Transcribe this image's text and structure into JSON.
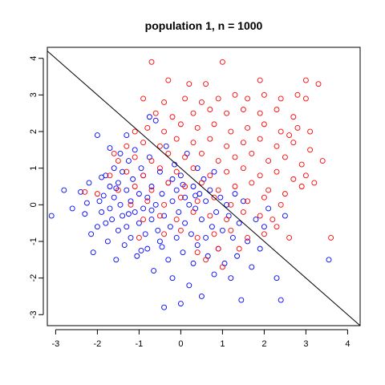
{
  "chart_data": {
    "type": "scatter",
    "title": "population 1, n = 1000",
    "xlabel": "",
    "ylabel": "",
    "xlim": [
      -3.2,
      4.3
    ],
    "ylim": [
      -3.3,
      4.3
    ],
    "x_ticks": [
      -3,
      -2,
      -1,
      0,
      1,
      2,
      3,
      4
    ],
    "y_ticks": [
      -3,
      -2,
      -1,
      0,
      1,
      2,
      3,
      4
    ],
    "x_tick_labels": [
      "-3",
      "-2",
      "-1",
      "0",
      "1",
      "2",
      "3",
      "4"
    ],
    "y_tick_labels": [
      "-3",
      "-2",
      "-1",
      "0",
      "1",
      "2",
      "3",
      "4"
    ],
    "grid": false,
    "legend": "none",
    "line": {
      "intercept": 1,
      "slope": -1,
      "color": "#000000"
    },
    "series": [
      {
        "color": "#0000ff",
        "marker": "open-circle",
        "points": [
          [
            -3.1,
            -0.3
          ],
          [
            -2.8,
            0.4
          ],
          [
            -2.6,
            -0.1
          ],
          [
            -2.4,
            0.35
          ],
          [
            -2.2,
            0.6
          ],
          [
            -2.15,
            -0.8
          ],
          [
            -2.1,
            -1.3
          ],
          [
            -2.0,
            -0.6
          ],
          [
            -1.95,
            0.1
          ],
          [
            -1.9,
            -0.2
          ],
          [
            -1.85,
            0.25
          ],
          [
            -1.8,
            -0.5
          ],
          [
            -1.8,
            0.8
          ],
          [
            -1.75,
            -1.0
          ],
          [
            -1.7,
            0.5
          ],
          [
            -1.7,
            -0.1
          ],
          [
            -1.65,
            -0.4
          ],
          [
            -1.6,
            1.0
          ],
          [
            -1.6,
            0.2
          ],
          [
            -1.55,
            -1.5
          ],
          [
            -1.5,
            -0.7
          ],
          [
            -1.5,
            0.6
          ],
          [
            -1.45,
            1.4
          ],
          [
            -1.45,
            0.0
          ],
          [
            -1.4,
            -0.3
          ],
          [
            -1.4,
            0.9
          ],
          [
            -1.35,
            -1.1
          ],
          [
            -1.3,
            0.4
          ],
          [
            -1.3,
            -0.6
          ],
          [
            -1.25,
            1.2
          ],
          [
            -1.2,
            0.1
          ],
          [
            -1.2,
            -0.9
          ],
          [
            -1.15,
            0.7
          ],
          [
            -1.1,
            -0.2
          ],
          [
            -1.1,
            1.5
          ],
          [
            -1.05,
            -1.4
          ],
          [
            -1.0,
            0.3
          ],
          [
            -1.0,
            -0.5
          ],
          [
            -0.95,
            1.0
          ],
          [
            -0.9,
            -0.1
          ],
          [
            -0.9,
            0.8
          ],
          [
            -0.85,
            -0.8
          ],
          [
            -0.8,
            0.2
          ],
          [
            -0.8,
            -1.2
          ],
          [
            -0.75,
            1.3
          ],
          [
            -0.7,
            -0.4
          ],
          [
            -0.7,
            0.5
          ],
          [
            -0.65,
            -1.8
          ],
          [
            -0.6,
            0.0
          ],
          [
            -0.6,
            2.3
          ],
          [
            -0.55,
            -0.7
          ],
          [
            -0.5,
            0.9
          ],
          [
            -0.5,
            -1.0
          ],
          [
            -0.45,
            0.3
          ],
          [
            -0.4,
            -2.8
          ],
          [
            -0.4,
            -0.3
          ],
          [
            -0.35,
            1.6
          ],
          [
            -0.3,
            -1.5
          ],
          [
            -0.3,
            0.6
          ],
          [
            -0.25,
            -0.6
          ],
          [
            -0.2,
            0.1
          ],
          [
            -0.2,
            -2.0
          ],
          [
            -0.15,
            1.1
          ],
          [
            -0.1,
            -0.9
          ],
          [
            -0.1,
            0.4
          ],
          [
            -0.05,
            -0.2
          ],
          [
            0.0,
            -2.7
          ],
          [
            0.0,
            0.8
          ],
          [
            0.05,
            -1.3
          ],
          [
            0.1,
            0.2
          ],
          [
            0.1,
            -0.5
          ],
          [
            0.15,
            1.4
          ],
          [
            0.2,
            -2.2
          ],
          [
            0.2,
            0.0
          ],
          [
            0.25,
            -0.8
          ],
          [
            0.3,
            0.5
          ],
          [
            0.3,
            -1.6
          ],
          [
            0.35,
            -0.1
          ],
          [
            0.4,
            1.0
          ],
          [
            0.4,
            -1.1
          ],
          [
            0.45,
            0.3
          ],
          [
            0.5,
            -0.4
          ],
          [
            0.5,
            -2.5
          ],
          [
            0.55,
            0.7
          ],
          [
            0.6,
            -0.9
          ],
          [
            0.6,
            0.1
          ],
          [
            0.65,
            -1.4
          ],
          [
            0.7,
            0.4
          ],
          [
            0.75,
            -0.6
          ],
          [
            0.8,
            -1.9
          ],
          [
            0.8,
            0.9
          ],
          [
            0.85,
            -0.2
          ],
          [
            0.9,
            -1.2
          ],
          [
            0.95,
            0.2
          ],
          [
            1.0,
            -0.7
          ],
          [
            1.05,
            -1.6
          ],
          [
            1.1,
            0.0
          ],
          [
            1.15,
            -0.3
          ],
          [
            1.2,
            -2.0
          ],
          [
            1.25,
            -0.9
          ],
          [
            1.3,
            0.3
          ],
          [
            1.35,
            -1.4
          ],
          [
            1.4,
            -0.5
          ],
          [
            1.45,
            -2.6
          ],
          [
            1.5,
            0.1
          ],
          [
            1.6,
            -1.0
          ],
          [
            1.7,
            -1.7
          ],
          [
            1.8,
            -0.4
          ],
          [
            1.9,
            -1.2
          ],
          [
            2.0,
            -0.6
          ],
          [
            2.1,
            -0.1
          ],
          [
            2.3,
            -2.0
          ],
          [
            2.4,
            -2.6
          ],
          [
            2.5,
            -0.3
          ],
          [
            3.55,
            -1.5
          ],
          [
            -2.0,
            1.9
          ],
          [
            -1.3,
            1.9
          ],
          [
            -0.75,
            2.4
          ],
          [
            -1.7,
            1.55
          ],
          [
            -2.3,
            -0.25
          ],
          [
            -2.25,
            0.05
          ],
          [
            -1.9,
            0.75
          ],
          [
            -1.55,
            0.45
          ],
          [
            -1.25,
            -0.25
          ],
          [
            -0.95,
            -1.25
          ],
          [
            -0.7,
            -0.15
          ],
          [
            -0.45,
            -1.15
          ],
          [
            -0.2,
            0.7
          ],
          [
            0.05,
            0.55
          ],
          [
            0.35,
            0.25
          ]
        ]
      },
      {
        "color": "#ff0000",
        "marker": "open-circle",
        "points": [
          [
            -0.7,
            3.9
          ],
          [
            1.0,
            3.9
          ],
          [
            -0.3,
            3.4
          ],
          [
            0.2,
            3.3
          ],
          [
            0.6,
            3.3
          ],
          [
            1.9,
            3.4
          ],
          [
            3.0,
            3.4
          ],
          [
            3.3,
            3.3
          ],
          [
            -0.9,
            2.9
          ],
          [
            -0.4,
            2.8
          ],
          [
            0.1,
            2.9
          ],
          [
            0.5,
            2.8
          ],
          [
            0.9,
            2.9
          ],
          [
            1.3,
            3.0
          ],
          [
            1.6,
            2.9
          ],
          [
            2.0,
            3.0
          ],
          [
            2.4,
            2.9
          ],
          [
            2.8,
            3.0
          ],
          [
            3.0,
            2.9
          ],
          [
            -0.6,
            2.5
          ],
          [
            -0.2,
            2.4
          ],
          [
            0.3,
            2.5
          ],
          [
            0.7,
            2.6
          ],
          [
            1.1,
            2.5
          ],
          [
            1.5,
            2.6
          ],
          [
            1.9,
            2.5
          ],
          [
            2.3,
            2.6
          ],
          [
            2.7,
            2.4
          ],
          [
            -1.1,
            2.0
          ],
          [
            -0.8,
            2.1
          ],
          [
            -0.4,
            2.0
          ],
          [
            0.0,
            2.2
          ],
          [
            0.4,
            2.1
          ],
          [
            0.8,
            2.2
          ],
          [
            1.2,
            2.0
          ],
          [
            1.6,
            2.1
          ],
          [
            2.0,
            2.2
          ],
          [
            2.4,
            2.0
          ],
          [
            2.8,
            2.1
          ],
          [
            3.1,
            2.0
          ],
          [
            -1.3,
            1.6
          ],
          [
            -0.9,
            1.7
          ],
          [
            -0.5,
            1.6
          ],
          [
            -0.1,
            1.8
          ],
          [
            0.3,
            1.7
          ],
          [
            0.7,
            1.8
          ],
          [
            1.1,
            1.6
          ],
          [
            1.5,
            1.7
          ],
          [
            1.9,
            1.8
          ],
          [
            2.3,
            1.6
          ],
          [
            2.7,
            1.7
          ],
          [
            3.1,
            1.5
          ],
          [
            -1.5,
            1.2
          ],
          [
            -1.1,
            1.3
          ],
          [
            -0.7,
            1.2
          ],
          [
            -0.3,
            1.4
          ],
          [
            0.1,
            1.3
          ],
          [
            0.5,
            1.4
          ],
          [
            0.9,
            1.2
          ],
          [
            1.3,
            1.3
          ],
          [
            1.7,
            1.4
          ],
          [
            2.1,
            1.2
          ],
          [
            2.5,
            1.3
          ],
          [
            2.9,
            1.1
          ],
          [
            3.4,
            1.2
          ],
          [
            -1.7,
            0.8
          ],
          [
            -1.3,
            0.9
          ],
          [
            -0.9,
            0.8
          ],
          [
            -0.5,
            1.0
          ],
          [
            -0.1,
            0.9
          ],
          [
            0.3,
            1.0
          ],
          [
            0.7,
            0.8
          ],
          [
            1.1,
            0.9
          ],
          [
            1.5,
            1.0
          ],
          [
            1.9,
            0.8
          ],
          [
            2.3,
            0.9
          ],
          [
            2.7,
            0.7
          ],
          [
            3.0,
            0.8
          ],
          [
            -1.5,
            0.4
          ],
          [
            -1.1,
            0.5
          ],
          [
            -0.7,
            0.4
          ],
          [
            -0.3,
            0.6
          ],
          [
            0.1,
            0.5
          ],
          [
            0.5,
            0.6
          ],
          [
            0.9,
            0.4
          ],
          [
            1.3,
            0.5
          ],
          [
            1.7,
            0.6
          ],
          [
            2.1,
            0.4
          ],
          [
            2.5,
            0.3
          ],
          [
            2.9,
            0.5
          ],
          [
            -1.2,
            0.0
          ],
          [
            -0.8,
            0.1
          ],
          [
            -0.4,
            0.0
          ],
          [
            0.0,
            0.2
          ],
          [
            0.4,
            0.1
          ],
          [
            0.8,
            0.2
          ],
          [
            1.2,
            0.0
          ],
          [
            1.6,
            0.1
          ],
          [
            2.0,
            0.2
          ],
          [
            2.4,
            0.0
          ],
          [
            -0.9,
            -0.4
          ],
          [
            -0.5,
            -0.3
          ],
          [
            -0.1,
            -0.4
          ],
          [
            0.3,
            -0.2
          ],
          [
            0.7,
            -0.3
          ],
          [
            1.1,
            -0.4
          ],
          [
            1.5,
            -0.2
          ],
          [
            1.9,
            -0.3
          ],
          [
            2.2,
            -0.4
          ],
          [
            -0.4,
            -0.8
          ],
          [
            0.0,
            -0.7
          ],
          [
            0.4,
            -0.9
          ],
          [
            0.8,
            -0.8
          ],
          [
            1.2,
            -0.7
          ],
          [
            1.6,
            -0.9
          ],
          [
            2.0,
            -0.8
          ],
          [
            0.4,
            -1.3
          ],
          [
            0.9,
            -1.2
          ],
          [
            1.0,
            -1.7
          ],
          [
            2.6,
            -0.9
          ],
          [
            3.6,
            -0.9
          ],
          [
            -2.0,
            0.3
          ],
          [
            -1.6,
            1.4
          ],
          [
            -2.3,
            0.35
          ],
          [
            -1.0,
            -0.9
          ],
          [
            0.6,
            -1.5
          ],
          [
            1.4,
            -1.2
          ],
          [
            2.3,
            -0.6
          ],
          [
            3.2,
            0.6
          ],
          [
            2.6,
            1.9
          ]
        ]
      }
    ]
  }
}
